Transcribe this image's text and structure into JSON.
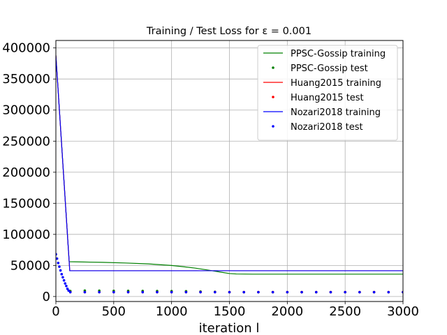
{
  "chart_data": {
    "type": "line",
    "title": "Training / Test Loss for ε = 0.001",
    "xlabel": "iteration l",
    "ylabel": "",
    "xlim": [
      0,
      3000
    ],
    "ylim": [
      -8000,
      412000
    ],
    "x_ticks": [
      0,
      500,
      1000,
      1500,
      2000,
      2500,
      3000
    ],
    "y_ticks": [
      0,
      50000,
      100000,
      150000,
      200000,
      250000,
      300000,
      350000,
      400000
    ],
    "x_tick_labels": [
      "0",
      "500",
      "1000",
      "1500",
      "2000",
      "2500",
      "3000"
    ],
    "y_tick_labels": [
      "0",
      "50000",
      "100000",
      "150000",
      "200000",
      "250000",
      "300000",
      "350000",
      "400000"
    ],
    "grid": true,
    "legend_position": "top-right",
    "series": [
      {
        "name": "PPSC-Gossip training",
        "kind": "line",
        "color": "#008000",
        "x": [
          0,
          115,
          200,
          400,
          600,
          800,
          1000,
          1100,
          1200,
          1300,
          1400,
          1500,
          1560,
          1700,
          2000,
          2500,
          3000
        ],
        "y": [
          388000,
          56000,
          55700,
          55000,
          54000,
          52500,
          50000,
          48000,
          45800,
          43000,
          40000,
          37000,
          36300,
          36000,
          36000,
          36000,
          36000
        ]
      },
      {
        "name": "PPSC-Gossip test",
        "kind": "scatter",
        "color": "#008000",
        "x": [
          125,
          250,
          375,
          500,
          625,
          750,
          875,
          1000,
          1125,
          1250,
          1375,
          1500,
          1625,
          1750,
          1875,
          2000,
          2125,
          2250,
          2375,
          2500,
          2625,
          2750,
          2875,
          3000
        ],
        "y": [
          8800,
          9500,
          9300,
          9000,
          9000,
          8900,
          8800,
          8700,
          8500,
          8000,
          7500,
          7000,
          7000,
          7000,
          7000,
          7000,
          7000,
          7000,
          7000,
          7000,
          7000,
          7000,
          7000,
          7000
        ]
      },
      {
        "name": "Huang2015 training",
        "kind": "line",
        "color": "#ff0000",
        "x": [
          0,
          120,
          3000
        ],
        "y": [
          388000,
          41500,
          41500
        ]
      },
      {
        "name": "Huang2015 test",
        "kind": "scatter",
        "color": "#ff0000",
        "x": [
          125,
          250,
          375,
          500,
          625,
          750,
          875,
          1000,
          1125,
          1250,
          1375,
          1500,
          1625,
          1750,
          1875,
          2000,
          2125,
          2250,
          2375,
          2500,
          2625,
          2750,
          2875,
          3000
        ],
        "y": [
          7200,
          7100,
          7100,
          7100,
          7100,
          7100,
          7100,
          7100,
          7100,
          7100,
          7100,
          7100,
          7100,
          7100,
          7100,
          7100,
          7100,
          7100,
          7100,
          7100,
          7100,
          7100,
          7100,
          7100
        ]
      },
      {
        "name": "Nozari2018 training",
        "kind": "line",
        "color": "#0000ff",
        "x": [
          0,
          120,
          3000
        ],
        "y": [
          388000,
          41500,
          41500
        ]
      },
      {
        "name": "Nozari2018 test",
        "kind": "scatter",
        "color": "#0000ff",
        "x": [
          0,
          10,
          20,
          30,
          40,
          50,
          60,
          70,
          80,
          90,
          100,
          110,
          125,
          250,
          375,
          500,
          625,
          750,
          875,
          1000,
          1125,
          1250,
          1375,
          1500,
          1625,
          1750,
          1875,
          2000,
          2125,
          2250,
          2375,
          2500,
          2625,
          2750,
          2875,
          3000
        ],
        "y": [
          68000,
          61000,
          54000,
          48000,
          42000,
          36000,
          31000,
          26000,
          21000,
          17000,
          12500,
          9500,
          7000,
          7000,
          7000,
          7000,
          7000,
          7000,
          7000,
          7000,
          7000,
          7000,
          7000,
          7000,
          7000,
          7000,
          7000,
          7000,
          7000,
          7000,
          7000,
          7000,
          7000,
          7000,
          7000,
          7000
        ]
      }
    ]
  }
}
